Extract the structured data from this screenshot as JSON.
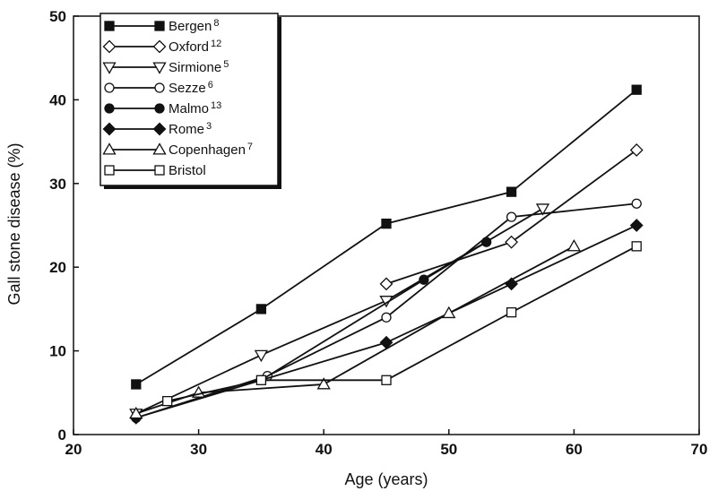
{
  "chart_data": {
    "type": "line",
    "title": "",
    "xlabel": "Age (years)",
    "ylabel": "Gall stone disease (%)",
    "xlim": [
      20,
      70
    ],
    "ylim": [
      0,
      50
    ],
    "xticks": [
      20,
      30,
      40,
      50,
      60,
      70
    ],
    "yticks": [
      0,
      10,
      20,
      30,
      40,
      50
    ],
    "grid": false,
    "legend_position": "top-left",
    "series": [
      {
        "name": "Bergen",
        "sup": "8",
        "marker": "square",
        "filled": true,
        "x": [
          25,
          35,
          45,
          55,
          65
        ],
        "y": [
          6,
          15,
          25.2,
          29,
          41.2
        ]
      },
      {
        "name": "Oxford",
        "sup": "12",
        "marker": "diamond",
        "filled": false,
        "x": [
          45,
          55,
          65
        ],
        "y": [
          18,
          23,
          34
        ]
      },
      {
        "name": "Sirmione",
        "sup": "5",
        "marker": "triangle-down",
        "filled": false,
        "x": [
          25,
          35,
          45,
          57.5
        ],
        "y": [
          2.5,
          9.5,
          16,
          27
        ]
      },
      {
        "name": "Sezze",
        "sup": "6",
        "marker": "circle",
        "filled": false,
        "x": [
          25,
          35.5,
          45,
          55,
          65
        ],
        "y": [
          2,
          7,
          14,
          26,
          27.6
        ]
      },
      {
        "name": "Malmo",
        "sup": "13",
        "marker": "circle",
        "filled": true,
        "x": [
          35,
          48,
          53
        ],
        "y": [
          6.5,
          18.5,
          23
        ]
      },
      {
        "name": "Rome",
        "sup": "3",
        "marker": "diamond",
        "filled": true,
        "x": [
          25,
          45,
          55,
          65
        ],
        "y": [
          2,
          11,
          18,
          25
        ]
      },
      {
        "name": "Copenhagen",
        "sup": "7",
        "marker": "triangle-up",
        "filled": false,
        "x": [
          25,
          30,
          40,
          50,
          60
        ],
        "y": [
          2.5,
          5,
          6,
          14.5,
          22.5
        ]
      },
      {
        "name": "Bristol",
        "sup": "",
        "marker": "square",
        "filled": false,
        "x": [
          27.5,
          35,
          45,
          55,
          65
        ],
        "y": [
          4,
          6.5,
          6.5,
          14.6,
          22.5
        ]
      }
    ]
  }
}
